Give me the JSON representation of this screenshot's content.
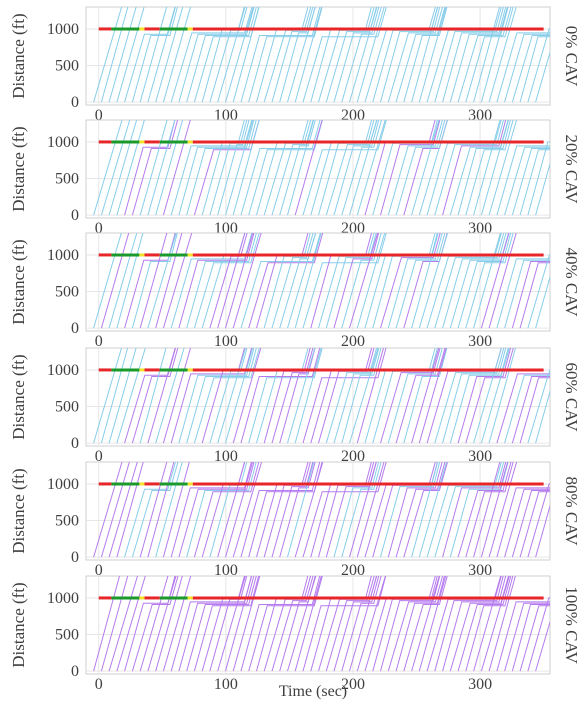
{
  "figure": {
    "xlabel": "Time (sec)"
  },
  "chart_data": [
    {
      "type": "line",
      "panel_label": "0% CAV",
      "ylabel": "Distance (ft)",
      "xlabel": "",
      "xlim": [
        -10,
        355
      ],
      "ylim": [
        -40,
        1300
      ],
      "x_ticks": [
        0,
        100,
        200,
        300
      ],
      "y_ticks": [
        0,
        500,
        1000
      ],
      "grid": true,
      "stop_bar_ft": 1000,
      "cav_share": 0.0,
      "series": [
        {
          "color": "#87cdea"
        },
        {
          "color": "#b57bee"
        }
      ],
      "signal_phases": [
        {
          "state": "red",
          "start": 0,
          "end": 10
        },
        {
          "state": "green",
          "start": 10,
          "end": 32
        },
        {
          "state": "yellow",
          "start": 32,
          "end": 36
        },
        {
          "state": "red",
          "start": 36,
          "end": 48
        },
        {
          "state": "green",
          "start": 48,
          "end": 70
        },
        {
          "state": "yellow",
          "start": 70,
          "end": 74
        },
        {
          "state": "red",
          "start": 74,
          "end": 350
        }
      ]
    },
    {
      "type": "line",
      "panel_label": "20% CAV",
      "ylabel": "Distance (ft)",
      "xlabel": "",
      "xlim": [
        -10,
        355
      ],
      "ylim": [
        -40,
        1300
      ],
      "x_ticks": [
        0,
        100,
        200,
        300
      ],
      "y_ticks": [
        0,
        500,
        1000
      ],
      "grid": true,
      "stop_bar_ft": 1000,
      "cav_share": 0.2,
      "series": [
        {
          "color": "#87cdea"
        },
        {
          "color": "#b57bee"
        }
      ],
      "signal_phases": [
        {
          "state": "red",
          "start": 0,
          "end": 10
        },
        {
          "state": "green",
          "start": 10,
          "end": 32
        },
        {
          "state": "yellow",
          "start": 32,
          "end": 36
        },
        {
          "state": "red",
          "start": 36,
          "end": 48
        },
        {
          "state": "green",
          "start": 48,
          "end": 70
        },
        {
          "state": "yellow",
          "start": 70,
          "end": 74
        },
        {
          "state": "red",
          "start": 74,
          "end": 350
        }
      ]
    },
    {
      "type": "line",
      "panel_label": "40% CAV",
      "ylabel": "Distance (ft)",
      "xlabel": "",
      "xlim": [
        -10,
        355
      ],
      "ylim": [
        -40,
        1300
      ],
      "x_ticks": [
        0,
        100,
        200,
        300
      ],
      "y_ticks": [
        0,
        500,
        1000
      ],
      "grid": true,
      "stop_bar_ft": 1000,
      "cav_share": 0.4,
      "series": [
        {
          "color": "#87cdea"
        },
        {
          "color": "#b57bee"
        }
      ],
      "signal_phases": [
        {
          "state": "red",
          "start": 0,
          "end": 10
        },
        {
          "state": "green",
          "start": 10,
          "end": 32
        },
        {
          "state": "yellow",
          "start": 32,
          "end": 36
        },
        {
          "state": "red",
          "start": 36,
          "end": 48
        },
        {
          "state": "green",
          "start": 48,
          "end": 70
        },
        {
          "state": "yellow",
          "start": 70,
          "end": 74
        },
        {
          "state": "red",
          "start": 74,
          "end": 350
        }
      ]
    },
    {
      "type": "line",
      "panel_label": "60% CAV",
      "ylabel": "Distance (ft)",
      "xlabel": "",
      "xlim": [
        -10,
        355
      ],
      "ylim": [
        -40,
        1300
      ],
      "x_ticks": [
        0,
        100,
        200,
        300
      ],
      "y_ticks": [
        0,
        500,
        1000
      ],
      "grid": true,
      "stop_bar_ft": 1000,
      "cav_share": 0.6,
      "series": [
        {
          "color": "#87cdea"
        },
        {
          "color": "#b57bee"
        }
      ],
      "signal_phases": [
        {
          "state": "red",
          "start": 0,
          "end": 10
        },
        {
          "state": "green",
          "start": 10,
          "end": 32
        },
        {
          "state": "yellow",
          "start": 32,
          "end": 36
        },
        {
          "state": "red",
          "start": 36,
          "end": 48
        },
        {
          "state": "green",
          "start": 48,
          "end": 70
        },
        {
          "state": "yellow",
          "start": 70,
          "end": 74
        },
        {
          "state": "red",
          "start": 74,
          "end": 350
        }
      ]
    },
    {
      "type": "line",
      "panel_label": "80% CAV",
      "ylabel": "Distance (ft)",
      "xlabel": "",
      "xlim": [
        -10,
        355
      ],
      "ylim": [
        -40,
        1300
      ],
      "x_ticks": [
        0,
        100,
        200,
        300
      ],
      "y_ticks": [
        0,
        500,
        1000
      ],
      "grid": true,
      "stop_bar_ft": 1000,
      "cav_share": 0.8,
      "series": [
        {
          "color": "#87cdea"
        },
        {
          "color": "#b57bee"
        }
      ],
      "signal_phases": [
        {
          "state": "red",
          "start": 0,
          "end": 10
        },
        {
          "state": "green",
          "start": 10,
          "end": 32
        },
        {
          "state": "yellow",
          "start": 32,
          "end": 36
        },
        {
          "state": "red",
          "start": 36,
          "end": 48
        },
        {
          "state": "green",
          "start": 48,
          "end": 70
        },
        {
          "state": "yellow",
          "start": 70,
          "end": 74
        },
        {
          "state": "red",
          "start": 74,
          "end": 350
        }
      ]
    },
    {
      "type": "line",
      "panel_label": "100% CAV",
      "ylabel": "Distance (ft)",
      "xlabel": "Time (sec)",
      "xlim": [
        -10,
        355
      ],
      "ylim": [
        -40,
        1300
      ],
      "x_ticks": [
        0,
        100,
        200,
        300
      ],
      "y_ticks": [
        0,
        500,
        1000
      ],
      "grid": true,
      "stop_bar_ft": 1000,
      "cav_share": 1.0,
      "series": [
        {
          "color": "#87cdea"
        },
        {
          "color": "#b57bee"
        }
      ],
      "signal_phases": [
        {
          "state": "red",
          "start": 0,
          "end": 10
        },
        {
          "state": "green",
          "start": 10,
          "end": 32
        },
        {
          "state": "yellow",
          "start": 32,
          "end": 36
        },
        {
          "state": "red",
          "start": 36,
          "end": 48
        },
        {
          "state": "green",
          "start": 48,
          "end": 70
        },
        {
          "state": "yellow",
          "start": 70,
          "end": 74
        },
        {
          "state": "red",
          "start": 74,
          "end": 350
        }
      ]
    }
  ]
}
